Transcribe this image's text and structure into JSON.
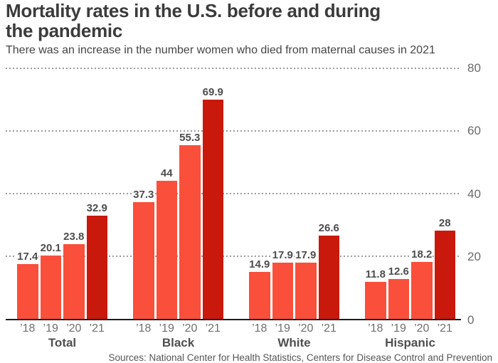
{
  "header": {
    "title": "Mortality rates in the U.S. before and during the pandemic",
    "subtitle": "There was an increase in the number women who died from maternal causes in 2021"
  },
  "footer": {
    "source": "Sources: National Center for Health Statistics, Centers for Disease Control and Prevention"
  },
  "colors": {
    "bar_regular": "#fa4f3b",
    "bar_2021_highlight": "#c8190c",
    "gridline": "#9c9c9c",
    "axis_line": "#1c1c1c",
    "title_text": "#3b3b3b",
    "value_label_text": "#4d4d4d",
    "year_tick_text": "#6f6f6f",
    "group_label_text": "#4f4f4f",
    "y_tick_text": "#6b6b6b",
    "source_text": "#555555"
  },
  "chart_data": {
    "type": "bar",
    "title": "Mortality rates in the U.S. before and during the pandemic",
    "subtitle": "There was an increase in the number women who died from maternal causes in 2021",
    "categories": [
      "Total",
      "Black",
      "White",
      "Hispanic"
    ],
    "series": [
      {
        "name": "’18",
        "values": [
          17.4,
          37.3,
          14.9,
          11.8
        ],
        "highlight": false
      },
      {
        "name": "’19",
        "values": [
          20.1,
          44,
          17.9,
          12.6
        ],
        "highlight": false
      },
      {
        "name": "’20",
        "values": [
          23.8,
          55.3,
          17.9,
          18.2
        ],
        "highlight": false
      },
      {
        "name": "’21",
        "values": [
          32.9,
          69.9,
          26.6,
          28
        ],
        "highlight": true
      }
    ],
    "value_labels": true,
    "ylim": [
      0,
      80
    ],
    "yticks": [
      0,
      20,
      40,
      60,
      80
    ],
    "y_axis_side": "right",
    "gridlines": "dotted-horizontal",
    "legend": "none"
  }
}
